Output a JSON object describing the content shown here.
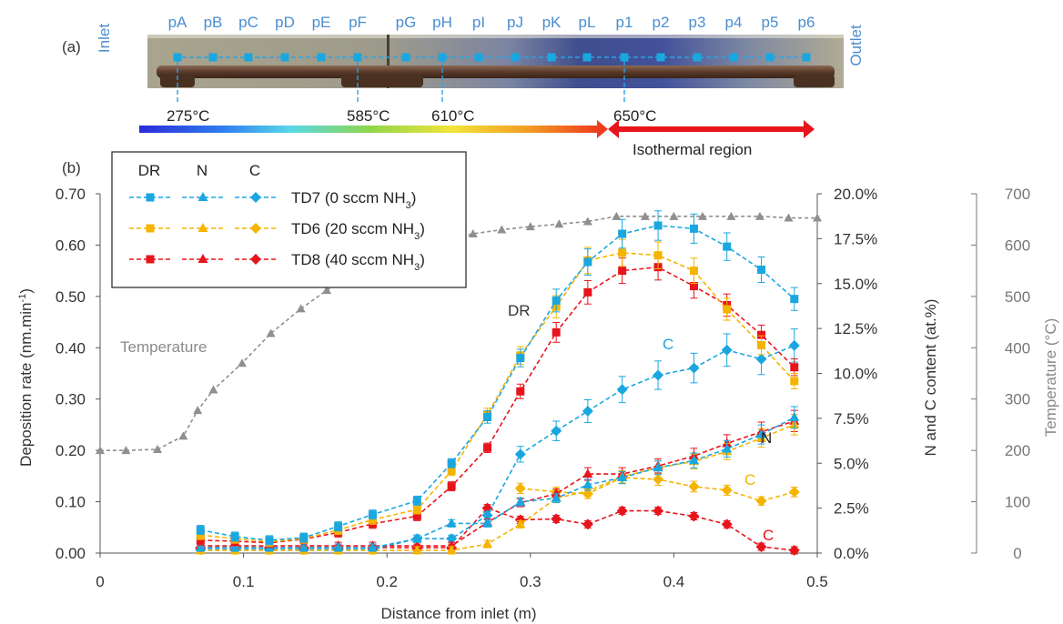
{
  "panel_a": {
    "label": "(a)",
    "inlet": "Inlet",
    "outlet": "Outlet",
    "positions": [
      "pA",
      "pB",
      "pC",
      "pD",
      "pE",
      "pF",
      "pG",
      "pH",
      "pI",
      "pJ",
      "pK",
      "pL",
      "p1",
      "p2",
      "p3",
      "p4",
      "p5",
      "p6"
    ],
    "temps": [
      "275°C",
      "585°C",
      "610°C",
      "650°C"
    ],
    "isothermal": "Isothermal region"
  },
  "panel_b": {
    "label": "(b)"
  },
  "legend": {
    "headers": [
      "DR",
      "N",
      "C"
    ],
    "entries": [
      {
        "pre": "TD7 (0 sccm NH",
        "sub": "3",
        "post": ")",
        "color": "#1aa7e0"
      },
      {
        "pre": "TD6 (20 sccm NH",
        "sub": "3",
        "post": ")",
        "color": "#f5b400"
      },
      {
        "pre": "TD8 (40 sccm NH",
        "sub": "3",
        "post": ")",
        "color": "#e8141c"
      }
    ]
  },
  "annotations": {
    "temperature": "Temperature",
    "dr": "DR",
    "c_blue": "C",
    "n": "N",
    "c_orange": "C",
    "c_red": "C"
  },
  "chart_data": {
    "type": "line",
    "xlabel": "Distance from inlet (m)",
    "ylabel": "Deposition rate (nm.min",
    "ylabel_sup": "-1",
    "ylabel_tail": ")",
    "y2label": "N and C content (at.%)",
    "y3label": "Temperature (°C)",
    "xlim": [
      0,
      0.5
    ],
    "ylim": [
      0,
      0.7
    ],
    "y2lim": [
      0,
      20
    ],
    "y3lim": [
      0,
      700
    ],
    "xticks": [
      "0",
      "0.1",
      "0.2",
      "0.3",
      "0.4",
      "0.5"
    ],
    "yticks": [
      "0.00",
      "0.10",
      "0.20",
      "0.30",
      "0.40",
      "0.50",
      "0.60",
      "0.70"
    ],
    "y2ticks": [
      "0.0%",
      "2.5%",
      "5.0%",
      "7.5%",
      "10.0%",
      "12.5%",
      "15.0%",
      "17.5%",
      "20.0%"
    ],
    "y3ticks": [
      "0",
      "100",
      "200",
      "300",
      "400",
      "500",
      "600",
      "700"
    ],
    "temperature": {
      "x": [
        0,
        0.018,
        0.04,
        0.058,
        0.068,
        0.079,
        0.099,
        0.119,
        0.14,
        0.158,
        0.18,
        0.2,
        0.22,
        0.24,
        0.26,
        0.28,
        0.3,
        0.32,
        0.34,
        0.36,
        0.38,
        0.4,
        0.42,
        0.44,
        0.46,
        0.48,
        0.5
      ],
      "y": [
        200,
        200,
        202,
        228,
        278,
        318,
        370,
        428,
        476,
        512,
        548,
        574,
        594,
        608,
        622,
        630,
        636,
        641,
        646,
        656,
        656,
        656,
        656,
        656,
        656,
        653,
        653
      ]
    },
    "dr_x": [
      0.07,
      0.094,
      0.118,
      0.142,
      0.166,
      0.19,
      0.221,
      0.245,
      0.27,
      0.293,
      0.318,
      0.34,
      0.364,
      0.389,
      0.414,
      0.437,
      0.461,
      0.484
    ],
    "series": [
      {
        "name": "TD7 (0 sccm NH3)",
        "color": "#1aa7e0",
        "dr": [
          0.045,
          0.032,
          0.025,
          0.03,
          0.052,
          0.075,
          0.102,
          0.175,
          0.265,
          0.38,
          0.492,
          0.567,
          0.622,
          0.638,
          0.632,
          0.597,
          0.552,
          0.495
        ],
        "n_x": [
          0.07,
          0.094,
          0.118,
          0.142,
          0.166,
          0.19,
          0.221,
          0.245,
          0.27,
          0.293,
          0.318,
          0.34,
          0.364,
          0.389,
          0.414,
          0.437,
          0.461,
          0.484
        ],
        "n": [
          0.3,
          0.3,
          0.3,
          0.3,
          0.3,
          0.3,
          0.8,
          1.65,
          1.65,
          2.85,
          3.05,
          3.8,
          4.2,
          4.75,
          5.15,
          5.8,
          6.6,
          7.55
        ],
        "c_x": [
          0.07,
          0.094,
          0.118,
          0.142,
          0.166,
          0.19,
          0.221,
          0.245,
          0.27,
          0.293,
          0.318,
          0.34,
          0.364,
          0.389,
          0.414,
          0.437,
          0.461,
          0.484
        ],
        "c": [
          0.2,
          0.2,
          0.2,
          0.2,
          0.2,
          0.2,
          0.8,
          0.8,
          2.1,
          5.5,
          6.8,
          7.9,
          9.1,
          9.9,
          10.3,
          11.3,
          10.8,
          11.55
        ]
      },
      {
        "name": "TD6 (20 sccm NH3)",
        "color": "#f5b400",
        "dr": [
          0.035,
          0.028,
          0.022,
          0.028,
          0.045,
          0.065,
          0.085,
          0.16,
          0.27,
          0.385,
          0.48,
          0.57,
          0.585,
          0.58,
          0.55,
          0.475,
          0.405,
          0.335
        ],
        "n_x": [
          0.07,
          0.094,
          0.118,
          0.142,
          0.166,
          0.19,
          0.221,
          0.245,
          0.27,
          0.293,
          0.318,
          0.34,
          0.364,
          0.389,
          0.414,
          0.437,
          0.461,
          0.484
        ],
        "n": [
          0.15,
          0.15,
          0.15,
          0.15,
          0.15,
          0.15,
          0.15,
          0.15,
          0.5,
          1.6,
          3.05,
          3.45,
          4.25,
          4.75,
          5.1,
          5.65,
          6.4,
          7.15
        ],
        "c_x": [
          0.293,
          0.318,
          0.34,
          0.364,
          0.389,
          0.414,
          0.437,
          0.461,
          0.484
        ],
        "c": [
          3.6,
          3.4,
          3.3,
          4.2,
          4.1,
          3.7,
          3.5,
          2.9,
          3.4
        ]
      },
      {
        "name": "TD8 (40 sccm NH3)",
        "color": "#e8141c",
        "dr": [
          0.025,
          0.023,
          0.02,
          0.027,
          0.04,
          0.057,
          0.072,
          0.13,
          0.205,
          0.315,
          0.43,
          0.508,
          0.55,
          0.557,
          0.52,
          0.483,
          0.425,
          0.362
        ],
        "n_x": [
          0.07,
          0.094,
          0.118,
          0.142,
          0.166,
          0.19,
          0.221,
          0.245,
          0.27,
          0.293,
          0.318,
          0.34,
          0.364,
          0.389,
          0.414,
          0.437,
          0.461,
          0.484
        ],
        "n": [
          0.4,
          0.4,
          0.4,
          0.4,
          0.4,
          0.4,
          0.4,
          0.4,
          1.7,
          2.8,
          3.3,
          4.4,
          4.4,
          4.85,
          5.4,
          6.1,
          6.75,
          7.35
        ],
        "c_x": [
          0.07,
          0.094,
          0.118,
          0.142,
          0.166,
          0.19,
          0.221,
          0.245,
          0.27,
          0.293,
          0.318,
          0.34,
          0.364,
          0.389,
          0.414,
          0.437,
          0.461,
          0.484
        ],
        "c": [
          0.3,
          0.3,
          0.3,
          0.3,
          0.3,
          0.3,
          0.3,
          0.3,
          2.5,
          1.85,
          1.9,
          1.6,
          2.35,
          2.35,
          2.05,
          1.6,
          0.35,
          0.15
        ]
      }
    ]
  }
}
